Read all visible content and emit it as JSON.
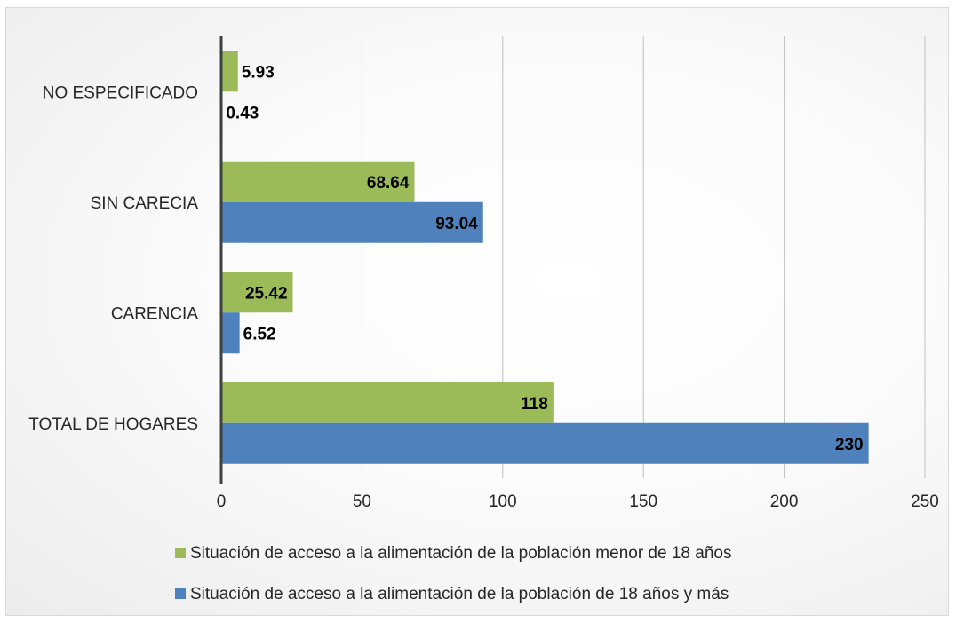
{
  "chart_data": {
    "type": "bar",
    "orientation": "horizontal",
    "title": "",
    "xlabel": "",
    "ylabel": "",
    "categories": [
      "TOTAL DE HOGARES",
      "CARENCIA",
      "SIN CARECIA",
      "NO ESPECIFICADO"
    ],
    "series": [
      {
        "name": "Situación de acceso a la alimentación de la población menor de 18 años",
        "color": "#9bbb59",
        "values": [
          118,
          25.42,
          68.64,
          5.93
        ],
        "labels": [
          "118",
          "25.42",
          "68.64",
          "5.93"
        ]
      },
      {
        "name": "Situación de acceso a la alimentación de la población de 18 años y más",
        "color": "#4f81bd",
        "values": [
          230,
          6.52,
          93.04,
          0.43
        ],
        "labels": [
          "230",
          "6.52",
          "93.04",
          "0.43"
        ]
      }
    ],
    "xlim": [
      0,
      250
    ],
    "xticks": [
      0,
      50,
      100,
      150,
      200,
      250
    ],
    "grid": "vertical",
    "legend_position": "bottom"
  }
}
